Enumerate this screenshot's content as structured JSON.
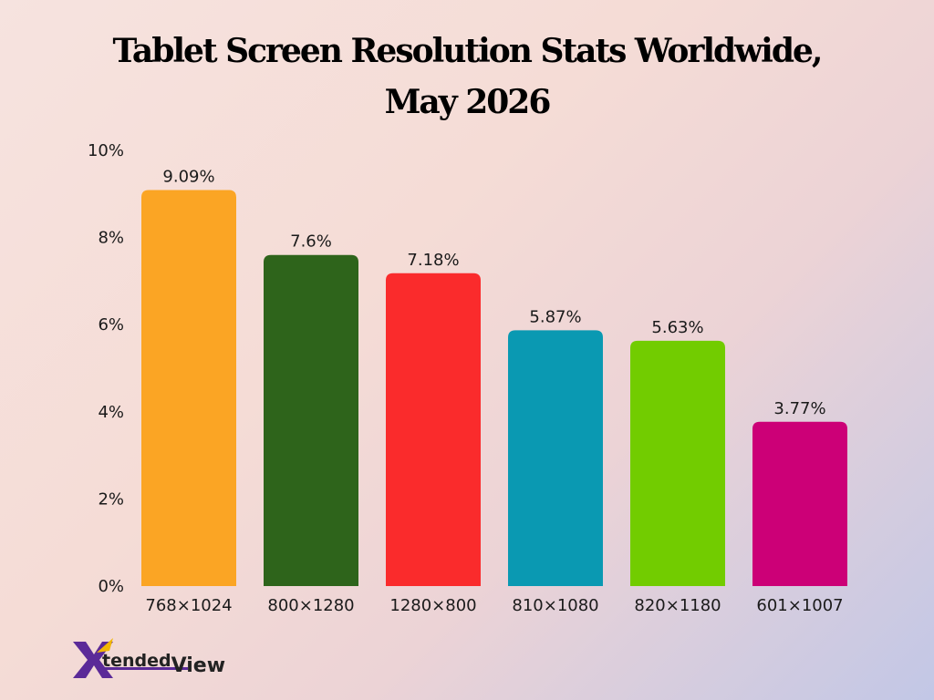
{
  "title_line1": "Tablet Screen Resolution Stats Worldwide,",
  "title_line2": "May 2026",
  "logo": {
    "mark": "X",
    "text_a": "tended",
    "text_b": "View"
  },
  "chart_data": {
    "type": "bar",
    "title": "Tablet Screen Resolution Stats Worldwide, May 2026",
    "categories": [
      "768×1024",
      "800×1280",
      "1280×800",
      "810×1080",
      "820×1180",
      "601×1007"
    ],
    "values": [
      9.09,
      7.6,
      7.18,
      5.87,
      5.63,
      3.77
    ],
    "value_labels": [
      "9.09%",
      "7.6%",
      "7.18%",
      "5.87%",
      "5.63%",
      "3.77%"
    ],
    "colors": [
      "#FBA524",
      "#2E641B",
      "#FA2B2C",
      "#0A99B2",
      "#72CC00",
      "#CC0077"
    ],
    "yticks": [
      "0%",
      "2%",
      "4%",
      "6%",
      "8%",
      "10%"
    ],
    "ylim": [
      0,
      10
    ],
    "xlabel": "",
    "ylabel": "",
    "grid": false,
    "legend": "none"
  }
}
